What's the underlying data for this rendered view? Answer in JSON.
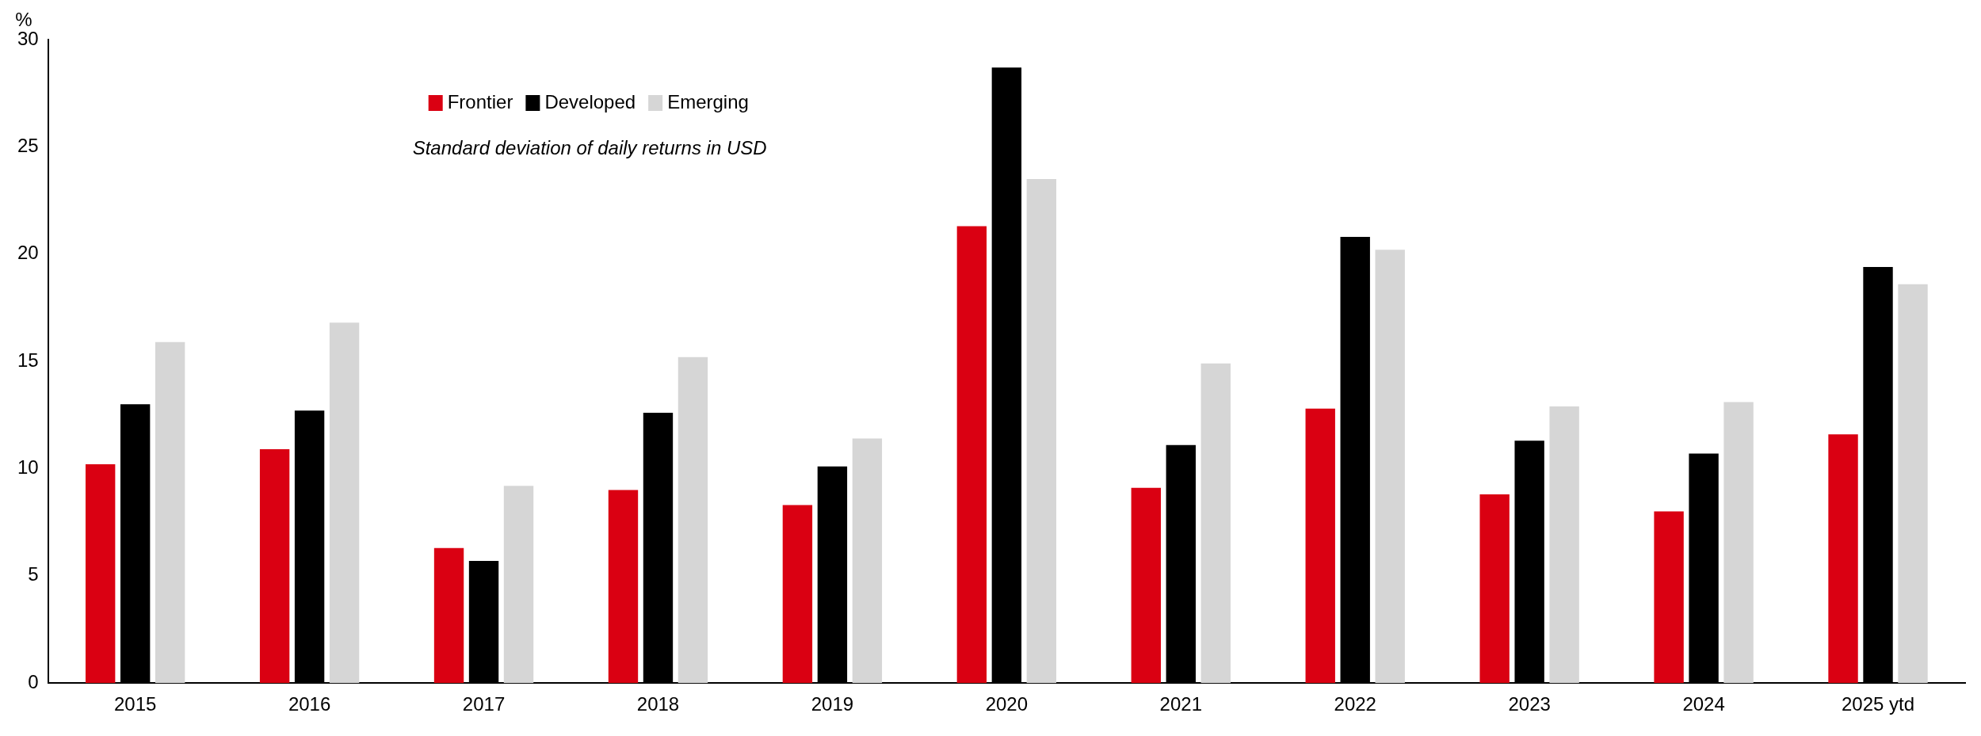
{
  "chart_data": {
    "type": "bar",
    "ylabel": "%",
    "annotations": [
      "Standard deviation of daily returns in USD"
    ],
    "categories": [
      "2015",
      "2016",
      "2017",
      "2018",
      "2019",
      "2020",
      "2021",
      "2022",
      "2023",
      "2024",
      "2025 ytd"
    ],
    "series": [
      {
        "name": "Frontier",
        "color": "#da0012",
        "values": [
          10.2,
          10.9,
          6.3,
          9.0,
          8.3,
          21.3,
          9.1,
          12.8,
          8.8,
          8.0,
          11.6
        ]
      },
      {
        "name": "Developed",
        "color": "#000000",
        "values": [
          13.0,
          12.7,
          5.7,
          12.6,
          10.1,
          28.7,
          11.1,
          20.8,
          11.3,
          10.7,
          19.4
        ]
      },
      {
        "name": "Emerging",
        "color": "#d6d6d6",
        "values": [
          15.9,
          16.8,
          9.2,
          15.2,
          11.4,
          23.5,
          14.9,
          20.2,
          12.9,
          13.1,
          18.6
        ]
      }
    ],
    "ylim": [
      0,
      30
    ],
    "yticks": [
      0,
      5,
      10,
      15,
      20,
      25,
      30
    ],
    "grid": false,
    "legend": "top left"
  }
}
